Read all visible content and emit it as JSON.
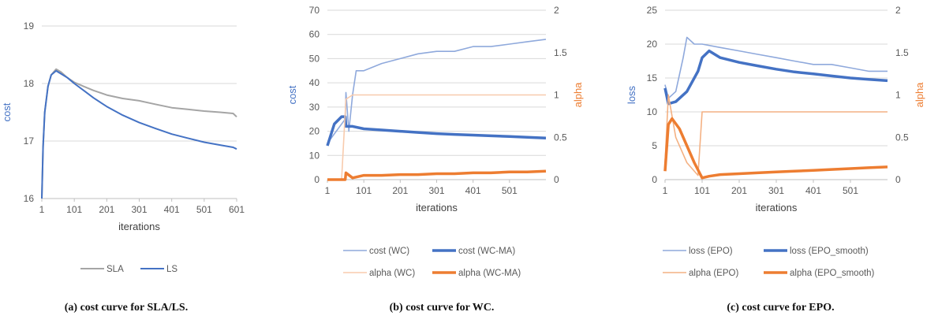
{
  "chart_data": [
    {
      "type": "line",
      "caption": "(a) cost curve for SLA/LS.",
      "ylabel": "cost",
      "xlabel": "iterations",
      "ylim": [
        16,
        19
      ],
      "yticks": [
        "16",
        "17",
        "18",
        "19"
      ],
      "xticks": [
        "1",
        "101",
        "201",
        "301",
        "401",
        "501",
        "601"
      ],
      "xlim": [
        1,
        601
      ],
      "grid": true,
      "legend_position": "bottom",
      "series": [
        {
          "name": "SLA",
          "color": "#a5a5a5",
          "x": [
            1,
            5,
            10,
            20,
            30,
            45,
            60,
            80,
            101,
            130,
            160,
            201,
            250,
            301,
            350,
            401,
            450,
            501,
            550,
            590,
            601
          ],
          "y": [
            16.0,
            16.9,
            17.5,
            17.95,
            18.15,
            18.25,
            18.2,
            18.1,
            18.02,
            17.95,
            17.88,
            17.8,
            17.74,
            17.7,
            17.64,
            17.58,
            17.55,
            17.52,
            17.5,
            17.48,
            17.42
          ]
        },
        {
          "name": "LS",
          "color": "#4472c4",
          "x": [
            1,
            5,
            10,
            20,
            30,
            45,
            60,
            80,
            101,
            130,
            160,
            201,
            250,
            301,
            350,
            401,
            450,
            501,
            550,
            590,
            601
          ],
          "y": [
            16.0,
            16.9,
            17.5,
            17.95,
            18.15,
            18.22,
            18.17,
            18.1,
            18.0,
            17.88,
            17.75,
            17.6,
            17.45,
            17.32,
            17.22,
            17.12,
            17.05,
            16.98,
            16.93,
            16.89,
            16.86
          ]
        }
      ]
    },
    {
      "type": "line",
      "caption": "(b) cost curve for WC.",
      "ylabel": "cost",
      "y2label": "alpha",
      "xlabel": "iterations",
      "ylim": [
        0,
        70
      ],
      "y2lim": [
        0,
        2
      ],
      "yticks": [
        "0",
        "10",
        "20",
        "30",
        "40",
        "50",
        "60",
        "70"
      ],
      "y2ticks": [
        "0",
        "0.5",
        "1",
        "1.5",
        "2"
      ],
      "xticks": [
        "1",
        "101",
        "201",
        "301",
        "401",
        "501"
      ],
      "xlim": [
        1,
        601
      ],
      "grid": true,
      "legend_position": "bottom",
      "series": [
        {
          "name": "cost (WC)",
          "color": "#8fa9dc",
          "axis": "left",
          "x": [
            1,
            50,
            52,
            60,
            70,
            80,
            90,
            101,
            150,
            201,
            250,
            301,
            350,
            401,
            450,
            501,
            550,
            601
          ],
          "y": [
            15,
            25,
            36,
            20,
            35,
            45,
            45,
            45,
            48,
            50,
            52,
            53,
            53,
            55,
            55,
            56,
            57,
            58
          ]
        },
        {
          "name": "cost (WC-MA)",
          "color": "#4472c4",
          "axis": "left",
          "x": [
            1,
            20,
            40,
            50,
            52,
            70,
            101,
            150,
            201,
            250,
            301,
            350,
            401,
            450,
            501,
            550,
            601
          ],
          "y": [
            14,
            23,
            26,
            26,
            22,
            22,
            21,
            20.5,
            20,
            19.5,
            19,
            18.7,
            18.4,
            18.1,
            17.8,
            17.5,
            17.2
          ]
        },
        {
          "name": "alpha (WC)",
          "color": "#f8cbad",
          "axis": "right",
          "x": [
            1,
            40,
            52,
            70,
            101,
            150,
            201,
            301,
            401,
            501,
            601
          ],
          "y": [
            0,
            0,
            0.95,
            1.0,
            1.0,
            1.0,
            1.0,
            1.0,
            1.0,
            1.0,
            1.0
          ]
        },
        {
          "name": "alpha (WC-MA)",
          "color": "#ed7d31",
          "axis": "right",
          "x": [
            1,
            50,
            52,
            70,
            101,
            150,
            201,
            250,
            301,
            350,
            401,
            450,
            501,
            550,
            601
          ],
          "y": [
            0,
            0,
            0.08,
            0.02,
            0.05,
            0.05,
            0.06,
            0.06,
            0.07,
            0.07,
            0.08,
            0.08,
            0.09,
            0.09,
            0.1
          ]
        }
      ]
    },
    {
      "type": "line",
      "caption": "(c) cost curve for EPO.",
      "ylabel": "loss",
      "y2label": "alpha",
      "xlabel": "iterations",
      "ylim": [
        0,
        25
      ],
      "y2lim": [
        0,
        2
      ],
      "yticks": [
        "0",
        "5",
        "10",
        "15",
        "20",
        "25"
      ],
      "y2ticks": [
        "0",
        "0.5",
        "1",
        "1.5",
        "2"
      ],
      "xticks": [
        "1",
        "101",
        "201",
        "301",
        "401",
        "501"
      ],
      "xlim": [
        1,
        601
      ],
      "grid": true,
      "legend_position": "bottom",
      "series": [
        {
          "name": "loss (EPO)",
          "color": "#8fa9dc",
          "axis": "left",
          "x": [
            1,
            10,
            30,
            50,
            60,
            80,
            101,
            150,
            201,
            250,
            301,
            350,
            401,
            450,
            501,
            550,
            601
          ],
          "y": [
            14,
            12,
            13,
            18,
            21,
            20,
            20,
            19.5,
            19,
            18.5,
            18,
            17.5,
            17,
            17,
            16.5,
            16,
            16
          ]
        },
        {
          "name": "loss (EPO_smooth)",
          "color": "#4472c4",
          "axis": "left",
          "x": [
            1,
            10,
            30,
            60,
            90,
            101,
            120,
            150,
            201,
            250,
            301,
            350,
            401,
            450,
            501,
            550,
            601
          ],
          "y": [
            13.5,
            11.2,
            11.5,
            13,
            16,
            18,
            19,
            18,
            17.3,
            16.8,
            16.3,
            15.9,
            15.6,
            15.3,
            15.0,
            14.8,
            14.6
          ]
        },
        {
          "name": "alpha (EPO)",
          "color": "#f4b183",
          "axis": "right",
          "x": [
            1,
            10,
            30,
            60,
            90,
            101,
            150,
            201,
            250,
            301,
            350,
            401,
            450,
            501,
            550,
            601
          ],
          "y": [
            0.2,
            1.0,
            0.5,
            0.2,
            0.05,
            0.8,
            0.8,
            0.8,
            0.8,
            0.8,
            0.8,
            0.8,
            0.8,
            0.8,
            0.8,
            0.8
          ]
        },
        {
          "name": "alpha (EPO_smooth)",
          "color": "#ed7d31",
          "axis": "right",
          "x": [
            1,
            10,
            20,
            40,
            60,
            80,
            101,
            120,
            150,
            201,
            250,
            301,
            350,
            401,
            450,
            501,
            550,
            601
          ],
          "y": [
            0.1,
            0.65,
            0.72,
            0.6,
            0.4,
            0.2,
            0.02,
            0.04,
            0.06,
            0.07,
            0.08,
            0.09,
            0.1,
            0.11,
            0.12,
            0.13,
            0.14,
            0.15
          ]
        }
      ]
    }
  ]
}
